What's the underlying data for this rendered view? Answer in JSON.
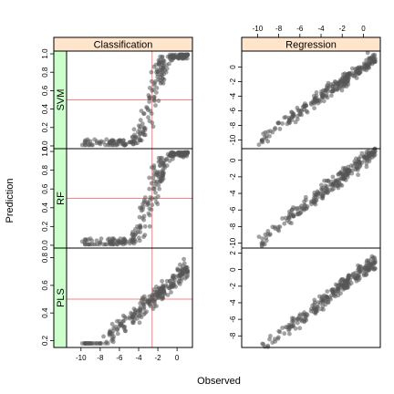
{
  "figure": {
    "xlabel": "Observed",
    "ylabel": "Prediction"
  },
  "colors": {
    "strip_top": "#ffe5cc",
    "strip_side": "#ccffcc",
    "point": "#555555",
    "ref_line": "#ff8080",
    "frame": "#000000"
  },
  "chart_data": [
    {
      "type": "scatter",
      "panel": "Classification / SVM",
      "column_strip": "Classification",
      "row_strip": "SVM",
      "xlim": [
        -11.5,
        1.6
      ],
      "ylim": [
        -0.03,
        1.03
      ],
      "x_ticks": [
        -10,
        -8,
        -6,
        -4,
        -2,
        0
      ],
      "y_ticks": [
        "0.0",
        "0.2",
        "0.4",
        "0.6",
        "0.8",
        "1.0"
      ],
      "ref_x": -2.6,
      "ref_y": 0.5,
      "model": "logistic",
      "points": []
    },
    {
      "type": "scatter",
      "panel": "Classification / RF",
      "column_strip": "Classification",
      "row_strip": "RF",
      "xlim": [
        -11.5,
        1.6
      ],
      "ylim": [
        -0.03,
        1.03
      ],
      "x_ticks": [
        -10,
        -8,
        -6,
        -4,
        -2,
        0
      ],
      "y_ticks": [
        "0.0",
        "0.2",
        "0.4",
        "0.6",
        "0.8",
        "1.0"
      ],
      "ref_x": -2.6,
      "ref_y": 0.5,
      "model": "logistic",
      "points": []
    },
    {
      "type": "scatter",
      "panel": "Classification / PLS",
      "column_strip": "Classification",
      "row_strip": "PLS",
      "xlim": [
        -11.5,
        1.6
      ],
      "ylim": [
        0.15,
        0.87
      ],
      "x_ticks": [
        -10,
        -8,
        -6,
        -4,
        -2,
        0
      ],
      "y_ticks": [
        "0.2",
        "0.4",
        "0.6",
        "0.8"
      ],
      "ref_x": -2.6,
      "ref_y": 0.5,
      "model": "linear-prob",
      "points": []
    },
    {
      "type": "scatter",
      "panel": "Regression / SVM",
      "column_strip": "Regression",
      "row_strip": "",
      "xlim": [
        -11.5,
        1.6
      ],
      "ylim": [
        -11.2,
        2.2
      ],
      "x_ticks": [
        -10,
        -8,
        -6,
        -4,
        -2,
        0
      ],
      "y_ticks": [
        "-10",
        "-8",
        "-6",
        "-4",
        "-2",
        "0"
      ],
      "model": "linear",
      "points": []
    },
    {
      "type": "scatter",
      "panel": "Regression / RF",
      "column_strip": "Regression",
      "row_strip": "",
      "xlim": [
        -11.5,
        1.6
      ],
      "ylim": [
        -10.6,
        1.4
      ],
      "x_ticks": [
        -10,
        -8,
        -6,
        -4,
        -2,
        0
      ],
      "y_ticks": [
        "-10",
        "-8",
        "-6",
        "-4",
        "-2",
        "0"
      ],
      "model": "linear",
      "points": []
    },
    {
      "type": "scatter",
      "panel": "Regression / PLS",
      "column_strip": "Regression",
      "row_strip": "",
      "xlim": [
        -11.5,
        1.6
      ],
      "ylim": [
        -9.4,
        2.6
      ],
      "x_ticks": [
        -10,
        -8,
        -6,
        -4,
        -2,
        0
      ],
      "y_ticks": [
        "-8",
        "-6",
        "-4",
        "-2",
        "0",
        "2"
      ],
      "model": "linear",
      "points": []
    }
  ]
}
